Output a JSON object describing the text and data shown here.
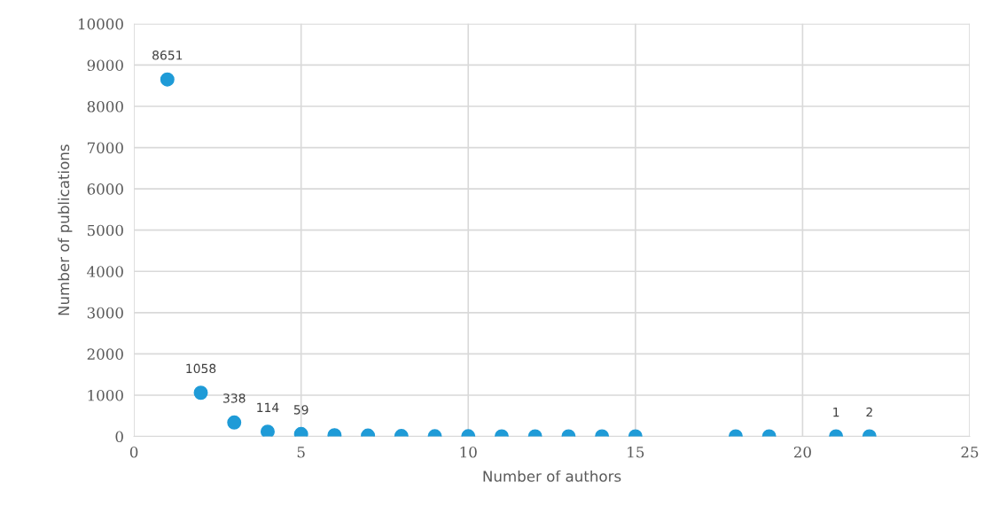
{
  "chart_data": {
    "type": "scatter",
    "xlabel": "Number of authors",
    "ylabel": "Number of publications",
    "x": [
      1,
      2,
      3,
      4,
      5,
      6,
      7,
      8,
      9,
      10,
      11,
      12,
      13,
      14,
      15,
      18,
      19,
      21,
      22
    ],
    "series": [
      {
        "color": "#1f9bd7",
        "values": [
          8651,
          1058,
          338,
          114,
          59,
          30,
          20,
          10,
          5,
          5,
          3,
          3,
          2,
          2,
          2,
          1,
          1,
          1,
          2
        ],
        "value_labels": [
          "8651",
          "1058",
          "338",
          "114",
          "59",
          null,
          null,
          null,
          null,
          null,
          null,
          null,
          null,
          null,
          null,
          null,
          null,
          "1",
          "2"
        ]
      }
    ],
    "xlim": [
      0,
      25
    ],
    "xticks": [
      0,
      5,
      10,
      15,
      20,
      25
    ],
    "ylim": [
      0,
      10000
    ],
    "yticks": [
      0,
      1000,
      2000,
      3000,
      4000,
      5000,
      6000,
      7000,
      8000,
      9000,
      10000
    ],
    "grid": true,
    "marker": "circle"
  }
}
